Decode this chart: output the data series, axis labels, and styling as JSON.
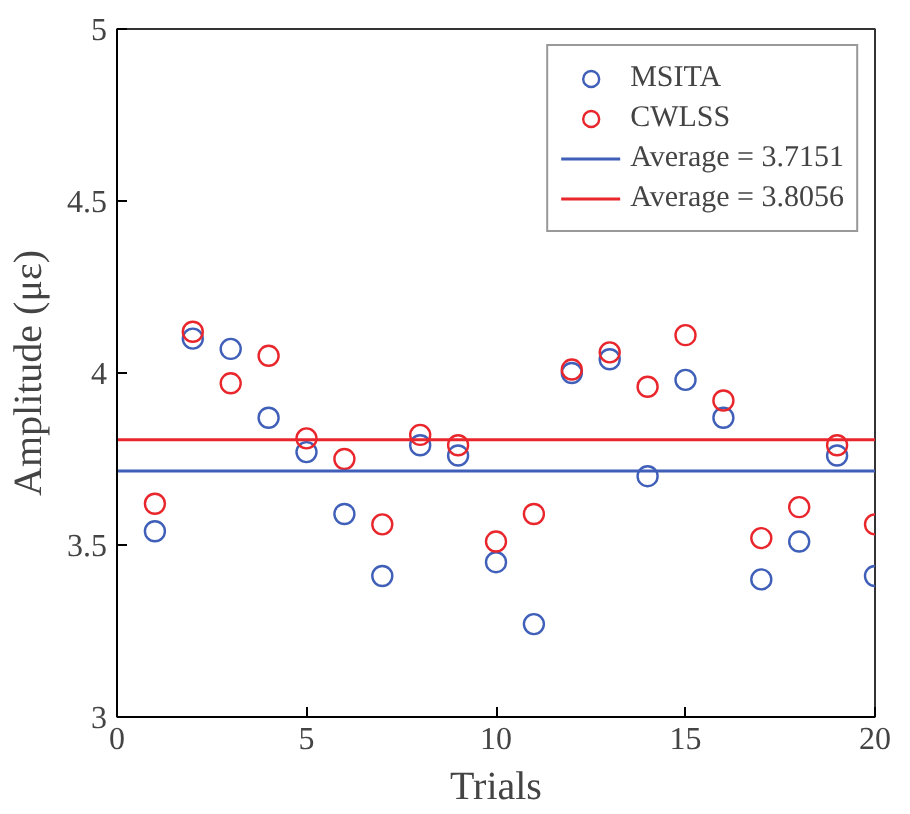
{
  "chart_data": {
    "type": "scatter",
    "xlabel": "Trials",
    "ylabel": "Amplitude (με)",
    "x": [
      1,
      2,
      3,
      4,
      5,
      6,
      7,
      8,
      9,
      10,
      11,
      12,
      13,
      14,
      15,
      16,
      17,
      18,
      19,
      20
    ],
    "series": [
      {
        "name": "MSITA",
        "color": "#3f5fb8",
        "values": [
          3.54,
          4.1,
          4.07,
          3.87,
          3.77,
          3.59,
          3.41,
          3.79,
          3.76,
          3.45,
          3.27,
          4.0,
          4.04,
          3.7,
          3.98,
          3.87,
          3.4,
          3.51,
          3.76,
          3.41
        ]
      },
      {
        "name": "CWLSS",
        "color": "#e8262c",
        "values": [
          3.62,
          4.12,
          3.97,
          4.05,
          3.81,
          3.75,
          3.56,
          3.82,
          3.79,
          3.51,
          3.59,
          4.01,
          4.06,
          3.96,
          4.11,
          3.92,
          3.52,
          3.61,
          3.79,
          3.56
        ]
      }
    ],
    "ref_lines": [
      {
        "axis": "y",
        "value": 3.7151,
        "label": "Average = 3.7151",
        "color": "#3f5fb8"
      },
      {
        "axis": "y",
        "value": 3.8056,
        "label": "Average = 3.8056",
        "color": "#e8262c"
      }
    ],
    "marker": "circle",
    "legend": "top right",
    "grid": false,
    "xlim": [
      0,
      20
    ],
    "xticks": [
      0,
      5,
      10,
      15,
      20
    ],
    "ylim": [
      3,
      5
    ],
    "yticks": [
      3,
      3.5,
      4,
      4.5,
      5
    ]
  }
}
